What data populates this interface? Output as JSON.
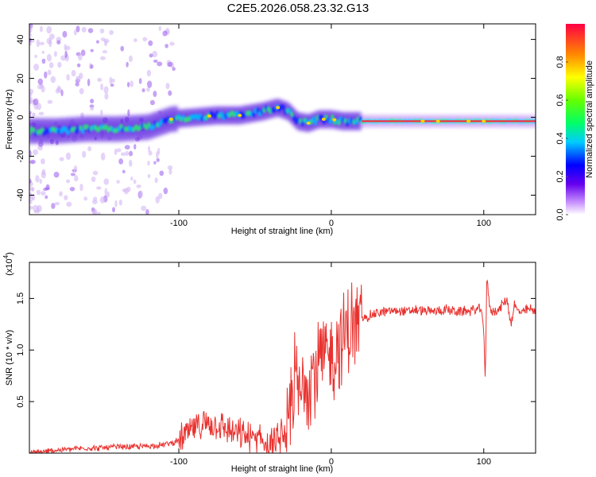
{
  "title": "C2E5.2026.058.23.32.G13",
  "chart_data": [
    {
      "type": "heatmap",
      "title": "C2E5.2026.058.23.32.G13",
      "xlabel": "Height of straight line (km)",
      "ylabel": "Frequency (Hz)",
      "xlim": [
        -198,
        134
      ],
      "ylim": [
        -50,
        48
      ],
      "x_ticks": [
        -100,
        0,
        100
      ],
      "x_tick_labels": [
        "-100",
        "0",
        "100"
      ],
      "y_ticks": [
        -40,
        -20,
        0,
        20,
        40
      ],
      "y_tick_labels": [
        "-40",
        "-20",
        "0",
        "20",
        "40"
      ],
      "colorbar": {
        "label": "Normalized spectral amplitude",
        "range": [
          0,
          1
        ],
        "ticks": [
          0.0,
          0.2,
          0.4,
          0.6,
          0.8
        ],
        "tick_labels": [
          "0.0",
          "0.2",
          "0.4",
          "0.6",
          "0.8"
        ]
      },
      "ridge": {
        "x": [
          -195,
          -180,
          -160,
          -140,
          -120,
          -105,
          -90,
          -75,
          -60,
          -45,
          -35,
          -28,
          -22,
          -15,
          -8,
          0,
          8,
          20,
          40,
          60,
          80,
          100,
          120,
          134
        ],
        "y": [
          -7,
          -7,
          -6,
          -6,
          -5,
          -1,
          0,
          1,
          1,
          3,
          5,
          3,
          -2,
          -3,
          -1,
          -1,
          -2,
          -2,
          -2,
          -2,
          -2,
          -2,
          -2,
          -2
        ]
      }
    },
    {
      "type": "line",
      "title": "",
      "xlabel": "Height of straight line (km)",
      "ylabel": "SNR (10 * v/v)",
      "y_scale_label": "(x10",
      "y_scale_exponent": "4",
      "y_scale_suffix": ")",
      "xlim": [
        -198,
        134
      ],
      "ylim": [
        0,
        1.85
      ],
      "x_ticks": [
        -100,
        0,
        100
      ],
      "x_tick_labels": [
        "-100",
        "0",
        "100"
      ],
      "y_ticks": [
        0.5,
        1.0,
        1.5
      ],
      "y_tick_labels": [
        "0.5",
        "1.0",
        "1.5"
      ],
      "series": [
        {
          "name": "SNR",
          "color": "#e8322f",
          "x": [
            -198,
            -190,
            -180,
            -170,
            -160,
            -150,
            -140,
            -130,
            -120,
            -110,
            -100,
            -95,
            -90,
            -85,
            -80,
            -75,
            -70,
            -65,
            -60,
            -55,
            -50,
            -45,
            -40,
            -35,
            -32,
            -30,
            -28,
            -26,
            -24,
            -22,
            -20,
            -18,
            -16,
            -14,
            -12,
            -10,
            -8,
            -6,
            -4,
            -2,
            0,
            2,
            4,
            6,
            8,
            10,
            12,
            14,
            16,
            18,
            20,
            25,
            30,
            35,
            40,
            45,
            50,
            55,
            60,
            65,
            70,
            75,
            80,
            85,
            90,
            95,
            98,
            100,
            101,
            102,
            104,
            106,
            110,
            115,
            118,
            120,
            122,
            125,
            130,
            134
          ],
          "values": [
            0.0,
            0.01,
            0.03,
            0.04,
            0.05,
            0.05,
            0.06,
            0.06,
            0.07,
            0.08,
            0.12,
            0.18,
            0.24,
            0.28,
            0.3,
            0.28,
            0.24,
            0.2,
            0.18,
            0.15,
            0.13,
            0.12,
            0.1,
            0.14,
            0.2,
            0.12,
            0.35,
            0.55,
            0.75,
            0.6,
            0.5,
            0.75,
            0.8,
            0.7,
            0.85,
            0.7,
            0.95,
            0.75,
            1.0,
            0.85,
            1.05,
            0.9,
            1.1,
            1.0,
            1.15,
            1.2,
            1.15,
            1.25,
            1.2,
            1.28,
            1.3,
            1.33,
            1.36,
            1.37,
            1.38,
            1.38,
            1.37,
            1.39,
            1.38,
            1.37,
            1.38,
            1.39,
            1.38,
            1.37,
            1.38,
            1.39,
            1.4,
            1.2,
            0.72,
            1.7,
            1.4,
            1.38,
            1.39,
            1.5,
            1.25,
            1.45,
            1.38,
            1.36,
            1.4,
            1.37
          ]
        }
      ]
    }
  ]
}
